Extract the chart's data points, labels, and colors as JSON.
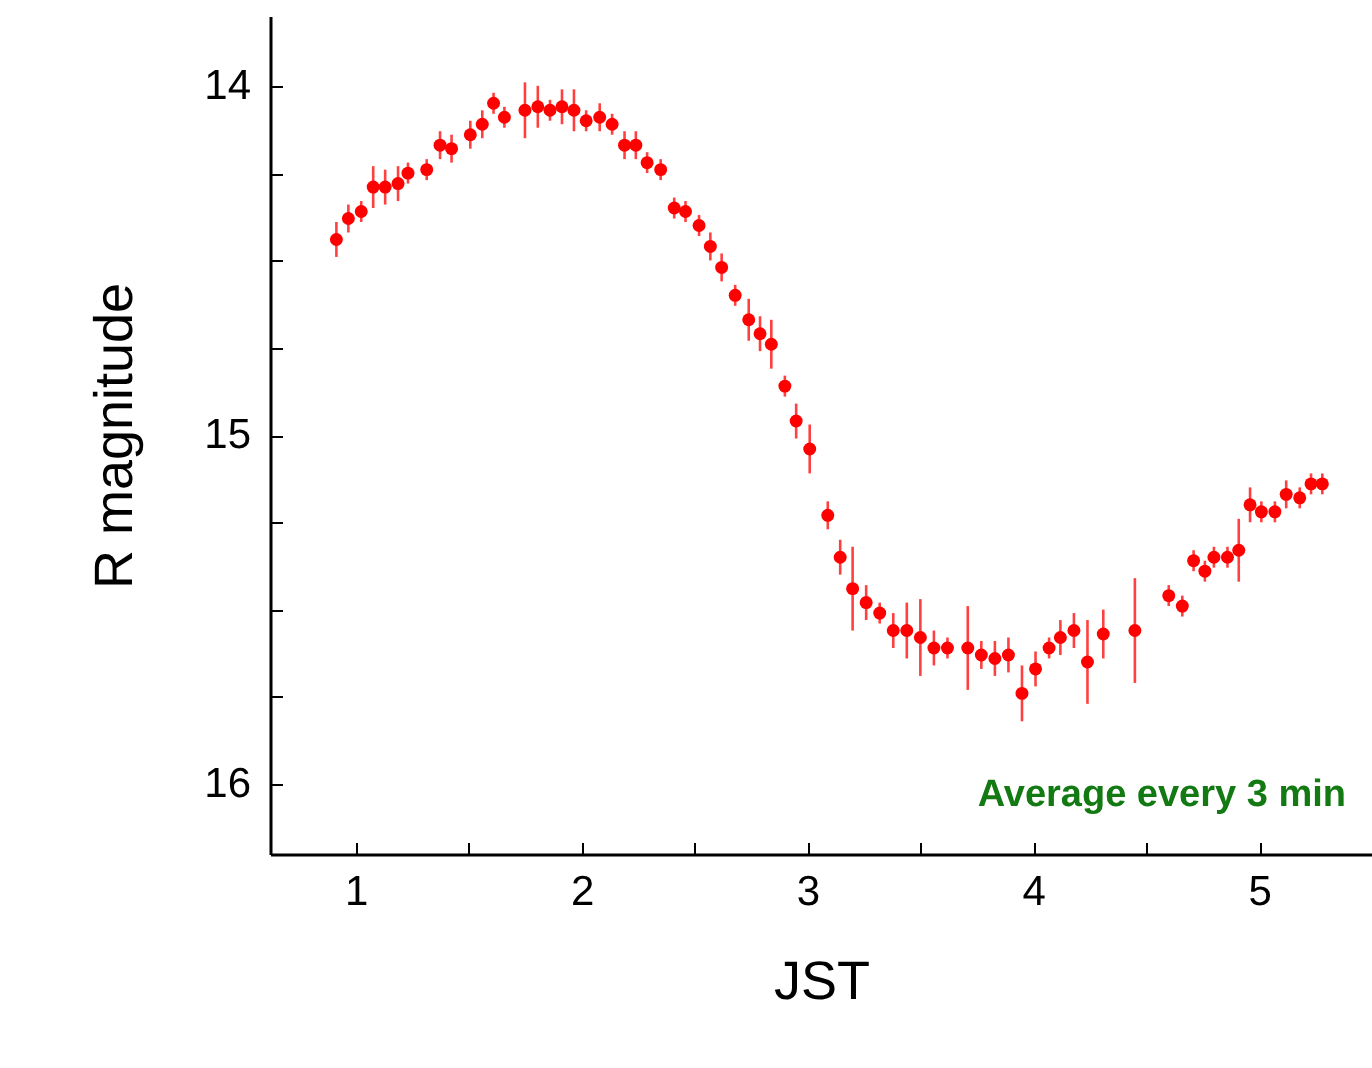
{
  "chart_data": {
    "type": "scatter",
    "xlabel": "JST",
    "ylabel": "R magnitude",
    "annotations": [
      "Average  every  3 min"
    ],
    "x": [
      0.914,
      0.967,
      1.024,
      1.077,
      1.13,
      1.187,
      1.231,
      1.314,
      1.373,
      1.424,
      1.507,
      1.56,
      1.61,
      1.658,
      1.749,
      1.806,
      1.86,
      1.913,
      1.966,
      2.02,
      2.08,
      2.135,
      2.19,
      2.24,
      2.29,
      2.35,
      2.41,
      2.46,
      2.52,
      2.57,
      2.62,
      2.68,
      2.74,
      2.79,
      2.84,
      2.9,
      2.95,
      3.01,
      3.09,
      3.145,
      3.2,
      3.26,
      3.32,
      3.38,
      3.44,
      3.5,
      3.56,
      3.62,
      3.71,
      3.77,
      3.83,
      3.89,
      3.95,
      4.01,
      4.07,
      4.12,
      4.18,
      4.24,
      4.31,
      4.45,
      4.6,
      4.66,
      4.71,
      4.76,
      4.8,
      4.86,
      4.91,
      4.96,
      5.01,
      5.07,
      5.12,
      5.18,
      5.23,
      5.28
    ],
    "series": [
      {
        "color": "#ff0000",
        "values": [
          14.44,
          14.38,
          14.36,
          14.29,
          14.29,
          14.28,
          14.25,
          14.24,
          14.17,
          14.18,
          14.14,
          14.11,
          14.05,
          14.09,
          14.07,
          14.06,
          14.07,
          14.06,
          14.07,
          14.1,
          14.09,
          14.11,
          14.17,
          14.17,
          14.22,
          14.24,
          14.35,
          14.36,
          14.4,
          14.46,
          14.52,
          14.6,
          14.67,
          14.71,
          14.74,
          14.86,
          14.96,
          15.04,
          15.23,
          15.35,
          15.44,
          15.48,
          15.51,
          15.56,
          15.56,
          15.58,
          15.61,
          15.61,
          15.61,
          15.63,
          15.64,
          15.63,
          15.74,
          15.67,
          15.61,
          15.58,
          15.56,
          15.65,
          15.57,
          15.56,
          15.46,
          15.49,
          15.36,
          15.39,
          15.35,
          15.35,
          15.33,
          15.2,
          15.22,
          15.22,
          15.17,
          15.18,
          15.14,
          15.14
        ],
        "errors": [
          0.05,
          0.04,
          0.03,
          0.06,
          0.05,
          0.05,
          0.03,
          0.03,
          0.04,
          0.04,
          0.04,
          0.04,
          0.03,
          0.03,
          0.08,
          0.06,
          0.03,
          0.05,
          0.06,
          0.03,
          0.04,
          0.03,
          0.04,
          0.04,
          0.03,
          0.03,
          0.03,
          0.03,
          0.03,
          0.04,
          0.04,
          0.03,
          0.06,
          0.05,
          0.07,
          0.03,
          0.05,
          0.07,
          0.04,
          0.05,
          0.12,
          0.05,
          0.03,
          0.05,
          0.08,
          0.11,
          0.05,
          0.03,
          0.12,
          0.04,
          0.05,
          0.05,
          0.08,
          0.05,
          0.03,
          0.05,
          0.05,
          0.12,
          0.07,
          0.15,
          0.03,
          0.03,
          0.03,
          0.03,
          0.03,
          0.03,
          0.09,
          0.05,
          0.03,
          0.03,
          0.04,
          0.03,
          0.03,
          0.03
        ]
      }
    ],
    "marker": "circle",
    "xlim": [
      0.62,
      5.5
    ],
    "xticks": [
      1,
      {
        "value": 1.5,
        "label": null
      },
      2,
      {
        "value": 2.5,
        "label": null
      },
      3,
      {
        "value": 3.5,
        "label": null
      },
      4,
      {
        "value": 4.5,
        "label": null
      },
      5
    ],
    "ylim": [
      16.2,
      13.8
    ],
    "yticks": [
      14,
      {
        "value": 14.25,
        "label": null
      },
      {
        "value": 14.5,
        "label": null
      },
      {
        "value": 14.75,
        "label": null
      },
      15,
      {
        "value": 15.25,
        "label": null
      },
      {
        "value": 15.5,
        "label": null
      },
      {
        "value": 15.75,
        "label": null
      },
      16
    ],
    "grid": false
  }
}
